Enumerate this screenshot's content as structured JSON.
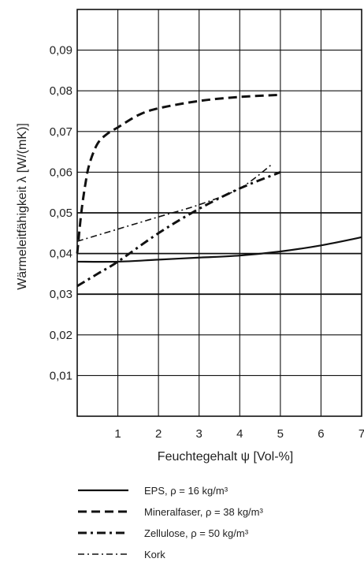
{
  "chart_data": {
    "type": "line",
    "xlabel": "Feuchtegehalt ψ [Vol-%]",
    "ylabel": "Wärmeleitfähigkeit λ [W/(mK)]",
    "xlim": [
      0,
      7
    ],
    "ylim": [
      0,
      0.1
    ],
    "x_ticks": [
      "1",
      "2",
      "3",
      "4",
      "5",
      "6",
      "7"
    ],
    "y_ticks": [
      "0,01",
      "0,02",
      "0,03",
      "0,04",
      "0,05",
      "0,06",
      "0,07",
      "0,08",
      "0,09"
    ],
    "grid": true,
    "legend_position": "bottom",
    "series": [
      {
        "name": "EPS, ρ = 16 kg/m³",
        "style": "solid",
        "points": [
          [
            0,
            0.038
          ],
          [
            1,
            0.038
          ],
          [
            2,
            0.0385
          ],
          [
            3,
            0.039
          ],
          [
            4,
            0.0395
          ],
          [
            5,
            0.0405
          ],
          [
            6,
            0.042
          ],
          [
            7,
            0.044
          ]
        ]
      },
      {
        "name": "Mineralfaser, ρ = 38 kg/m³",
        "style": "dashed",
        "points": [
          [
            0,
            0.04
          ],
          [
            0.1,
            0.05
          ],
          [
            0.2,
            0.057
          ],
          [
            0.3,
            0.062
          ],
          [
            0.5,
            0.067
          ],
          [
            0.75,
            0.0695
          ],
          [
            1,
            0.071
          ],
          [
            1.5,
            0.074
          ],
          [
            2,
            0.0757
          ],
          [
            3,
            0.0775
          ],
          [
            4,
            0.0785
          ],
          [
            5,
            0.079
          ]
        ]
      },
      {
        "name": "Zellulose, ρ = 50 kg/m³",
        "style": "dash-dot-heavy",
        "points": [
          [
            0,
            0.032
          ],
          [
            0.5,
            0.035
          ],
          [
            1,
            0.038
          ],
          [
            2,
            0.045
          ],
          [
            3,
            0.051
          ],
          [
            4,
            0.056
          ],
          [
            5,
            0.06
          ]
        ]
      },
      {
        "name": "Kork",
        "style": "dash-dot-light",
        "points": [
          [
            0,
            0.043
          ],
          [
            1,
            0.046
          ],
          [
            2,
            0.049
          ],
          [
            3,
            0.052
          ],
          [
            4,
            0.056
          ],
          [
            4.8,
            0.062
          ]
        ]
      }
    ]
  }
}
